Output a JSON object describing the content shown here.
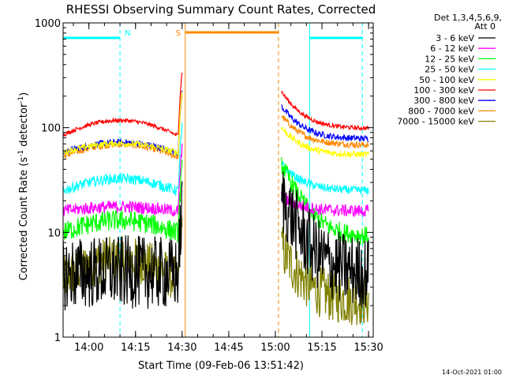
{
  "chart_data": {
    "type": "line",
    "title": "RHESSI Observing Summary Count Rates, Corrected",
    "xlabel": "Start Time (09-Feb-06 13:51:42)",
    "ylabel_parts": {
      "main": "Corrected Count Rate (s",
      "sup": "-1",
      "rest": " detector",
      "sup2": "-1",
      "end": ")"
    },
    "ylim": [
      1,
      1000
    ],
    "yscale": "log",
    "y_ticks": [
      1,
      10,
      100,
      1000
    ],
    "y_tick_labels": [
      "1",
      "10",
      "100",
      "1000"
    ],
    "x_range_minutes": [
      "13:51:42",
      "15:31:30"
    ],
    "x_ticks": [
      "14:00",
      "14:15",
      "14:30",
      "14:45",
      "15:00",
      "15:15",
      "15:30"
    ],
    "legend_header": [
      "Det 1,3,4,5,6,9,",
      "Att 0"
    ],
    "series": [
      {
        "name": "3 - 6 keV",
        "color": "#000000",
        "pre": {
          "level": 4,
          "rise": 1.05,
          "noise": 0.35
        },
        "post": {
          "start": 22,
          "end": 4,
          "noise": 0.35
        }
      },
      {
        "name": "6 - 12 keV",
        "color": "#ff00ff",
        "pre": {
          "level": 16,
          "rise": 1.1,
          "noise": 0.06
        },
        "post": {
          "start": 22,
          "end": 16,
          "noise": 0.06
        }
      },
      {
        "name": "12 - 25 keV",
        "color": "#00ff00",
        "pre": {
          "level": 10,
          "rise": 1.3,
          "noise": 0.1
        },
        "post": {
          "start": 45,
          "end": 9,
          "noise": 0.09
        }
      },
      {
        "name": "25 - 50 keV",
        "color": "#00ffff",
        "pre": {
          "level": 25,
          "rise": 1.3,
          "noise": 0.05
        },
        "post": {
          "start": 45,
          "end": 25,
          "noise": 0.04
        }
      },
      {
        "name": "50 - 100 keV",
        "color": "#ffff00",
        "pre": {
          "level": 58,
          "rise": 1.22,
          "noise": 0.03
        },
        "post": {
          "start": 100,
          "end": 55,
          "noise": 0.03
        }
      },
      {
        "name": "100 - 300 keV",
        "color": "#ff0000",
        "pre": {
          "level": 85,
          "rise": 1.38,
          "noise": 0.02
        },
        "post": {
          "start": 220,
          "end": 98,
          "noise": 0.02
        }
      },
      {
        "name": "300 - 800 keV",
        "color": "#0000ff",
        "pre": {
          "level": 58,
          "rise": 1.25,
          "noise": 0.03
        },
        "post": {
          "start": 160,
          "end": 78,
          "noise": 0.03
        }
      },
      {
        "name": "800 - 7000 keV",
        "color": "#ff8800",
        "pre": {
          "level": 53,
          "rise": 1.3,
          "noise": 0.03
        },
        "post": {
          "start": 130,
          "end": 68,
          "noise": 0.03
        }
      },
      {
        "name": "7000 - 15000 keV",
        "color": "#808000",
        "pre": {
          "level": 3.5,
          "rise": 1.6,
          "noise": 0.22
        },
        "post": {
          "start": 7,
          "end": 2.2,
          "noise": 0.25
        }
      }
    ],
    "markers": [
      {
        "label": "N",
        "color": "#00ffff",
        "type": "night",
        "start": "13:51:42",
        "end": "14:10"
      },
      {
        "label": "S",
        "color": "#ff8800",
        "type": "saa",
        "start": "14:31",
        "end": "15:01"
      },
      {
        "label": "",
        "color": "#00ffff",
        "type": "night",
        "start": "15:11",
        "end": "15:28"
      }
    ],
    "grid": false
  },
  "footer_stamp": "14-Oct-2021 01:00"
}
